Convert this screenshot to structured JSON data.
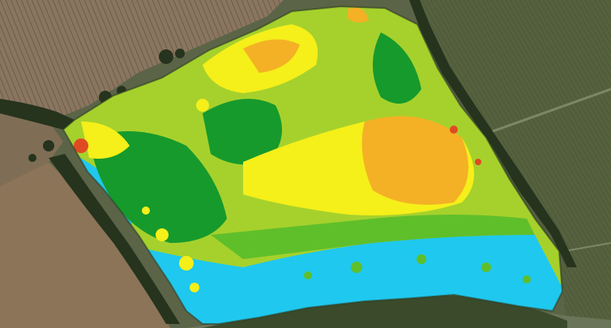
{
  "map": {
    "type": "aerial field yield/variability heatmap overlay",
    "legend_visible": false,
    "palette": {
      "very_low": "#1fc8ee",
      "low": "#169a2c",
      "medium_low": "#5fbf2a",
      "medium": "#a6d12c",
      "medium_high": "#f5ef1a",
      "high": "#f4b125",
      "very_high": "#e04a22",
      "background_field_light": "#7c6a53",
      "background_field_dark": "#4f5a3c",
      "hedgerow": "#2a3722"
    }
  }
}
